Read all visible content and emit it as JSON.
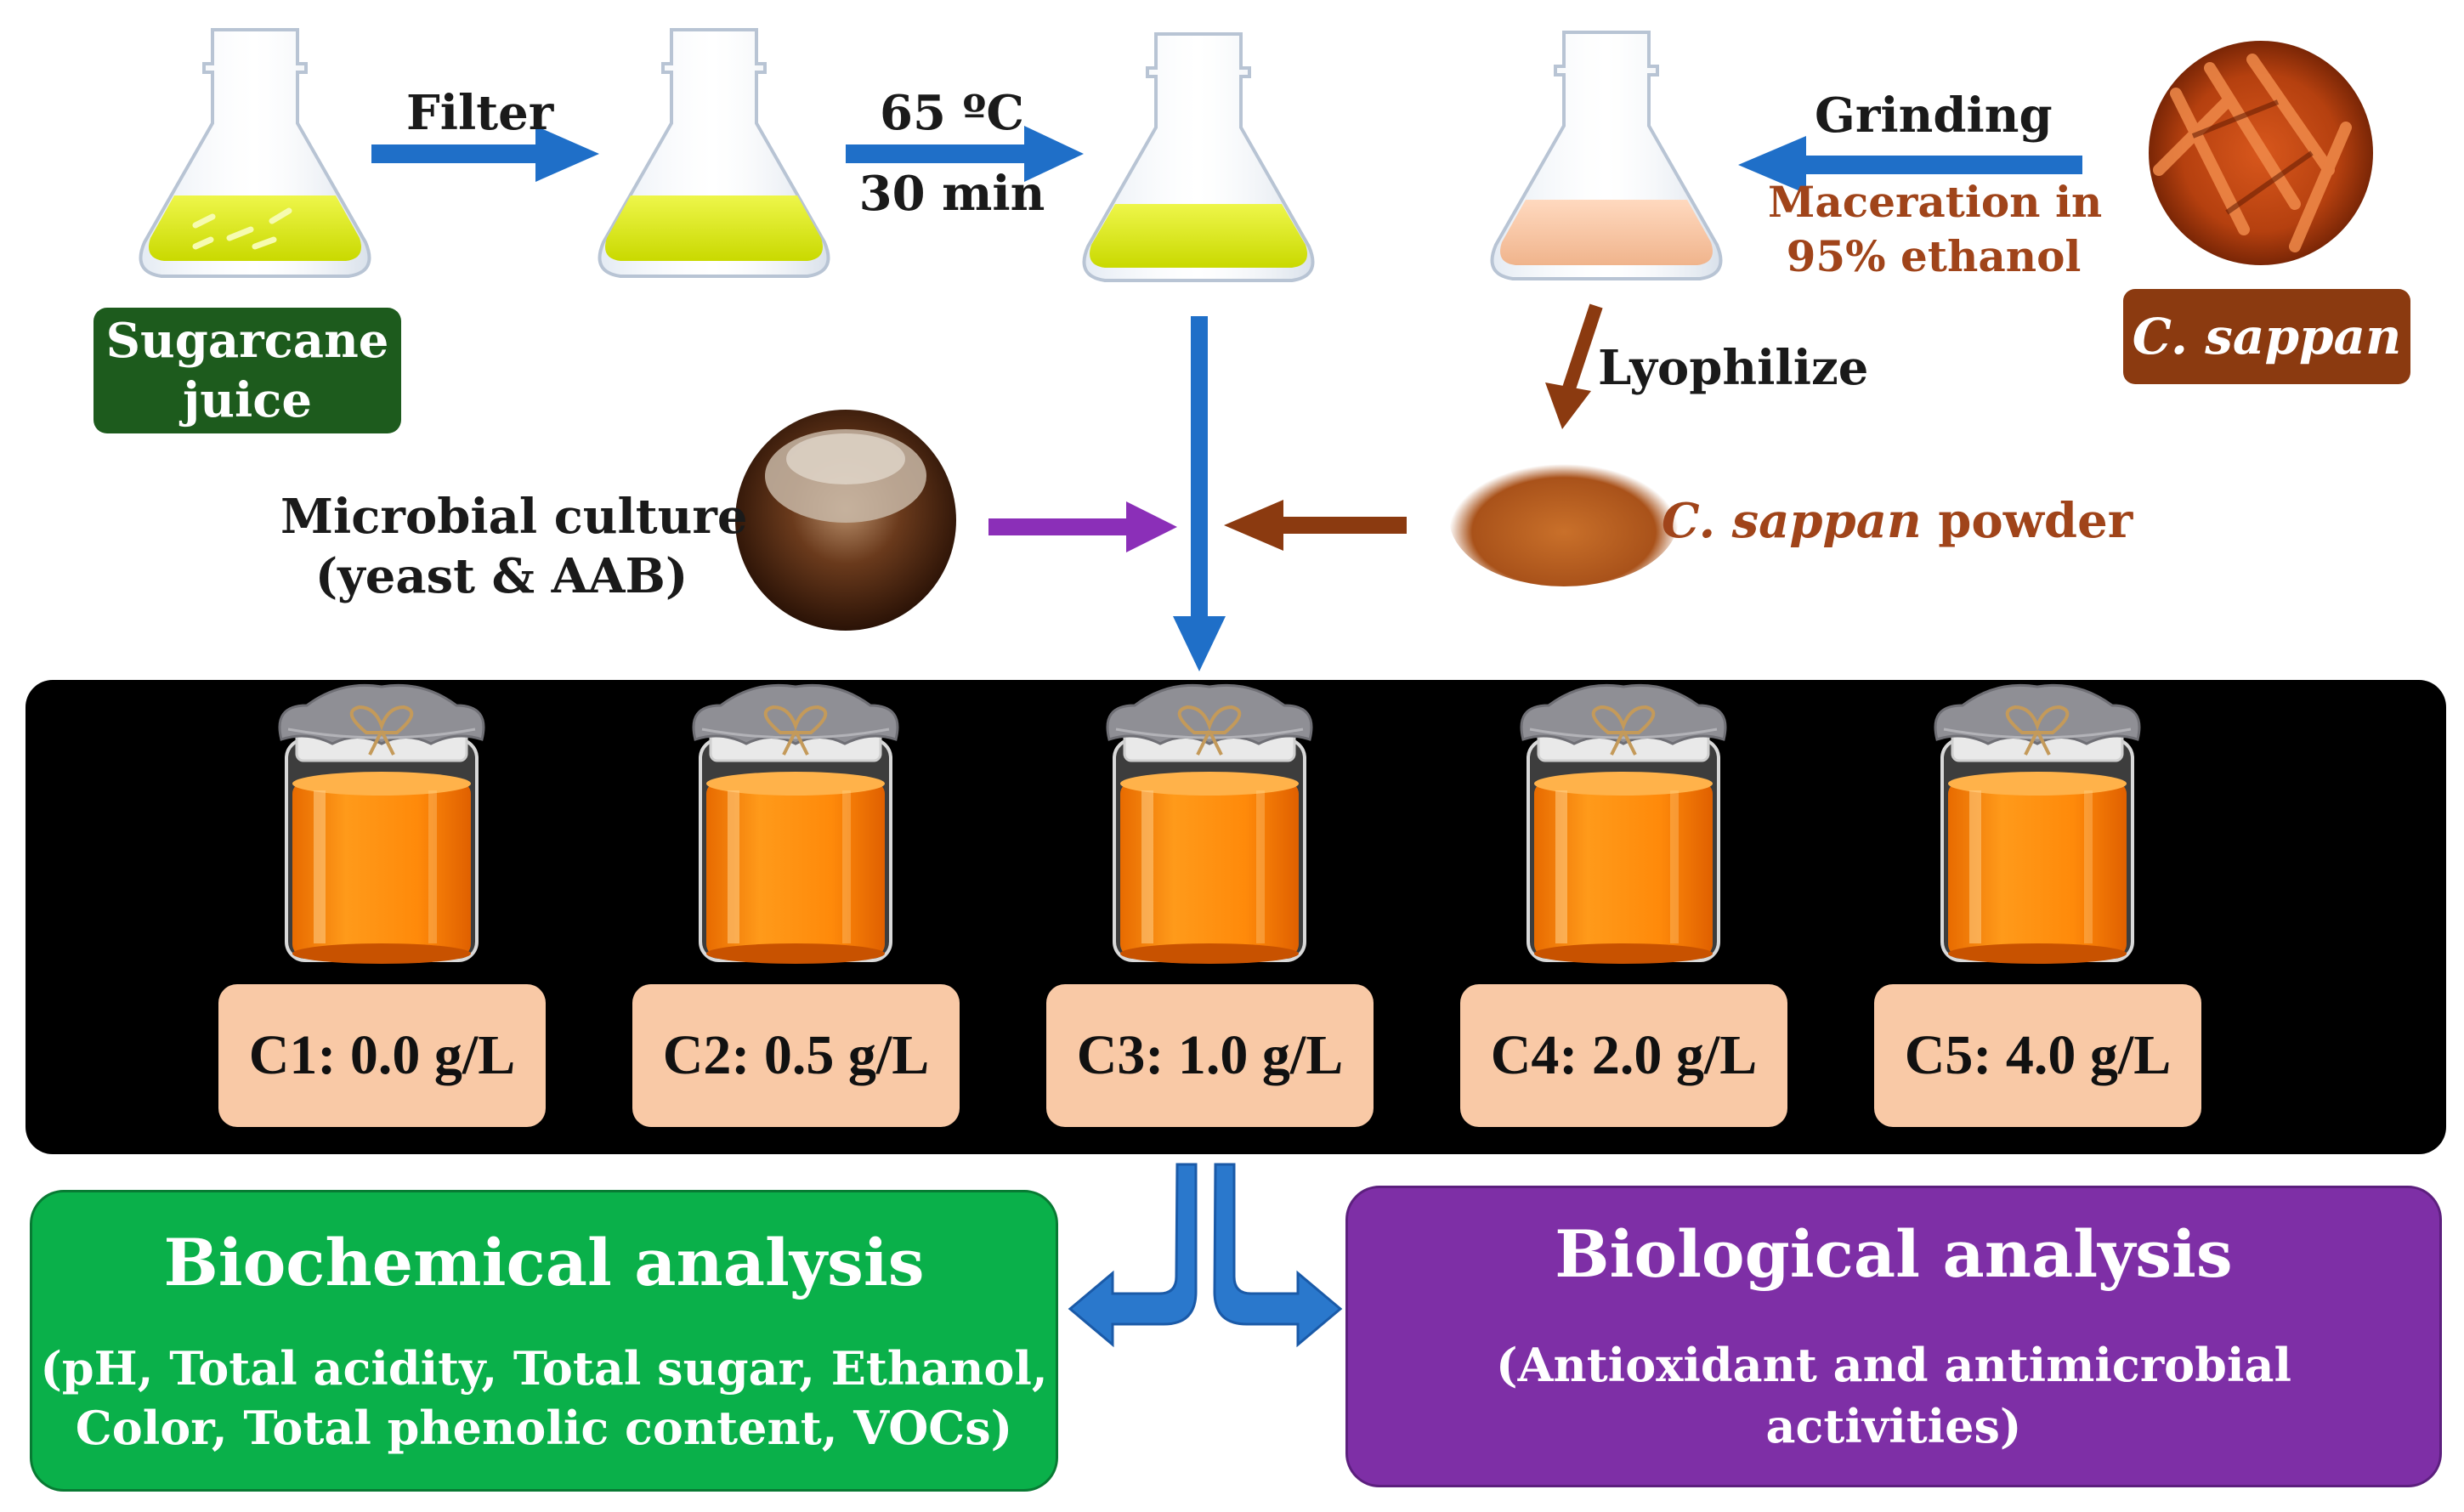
{
  "steps": {
    "filter": "Filter",
    "heat_temp": "65 ºC",
    "heat_time": "30 min",
    "grinding": "Grinding",
    "maceration_line1": "Maceration in",
    "maceration_line2": "95% ethanol",
    "lyophilize": "Lyophilize"
  },
  "materials": {
    "sugarcane_line1": "Sugarcane",
    "sugarcane_line2": "juice",
    "c_sappan": "C. sappan",
    "powder_italic": "C. sappan",
    "powder_rest": " powder",
    "culture_line1": "Microbial culture",
    "culture_line2": "(yeast & AAB)"
  },
  "concentrations": [
    {
      "label": "C1: 0.0 g/L"
    },
    {
      "label": "C2: 0.5 g/L"
    },
    {
      "label": "C3: 1.0 g/L"
    },
    {
      "label": "C4: 2.0 g/L"
    },
    {
      "label": "C5: 4.0 g/L"
    }
  ],
  "analysis": {
    "biochemical_title": "Biochemical analysis",
    "biochemical_line1": "(pH, Total acidity, Total sugar, Ethanol,",
    "biochemical_line2": "Color, Total phenolic content, VOCs)",
    "biological_title": "Biological analysis",
    "biological_line1": "(Antioxidant and antimicrobial",
    "biological_line2": "activities)"
  },
  "colors": {
    "blue_arrow": "#1f6fc8",
    "brown_arrow": "#8b3a10",
    "purple_arrow": "#8b2fb8",
    "sugarcane_box": "#1d5b1d",
    "sappan_box": "#8b3a10",
    "biochemical_box": "#0ab04a",
    "biological_box": "#7e2fa6",
    "jar_label": "#f9c9a6",
    "panel": "#000000"
  }
}
